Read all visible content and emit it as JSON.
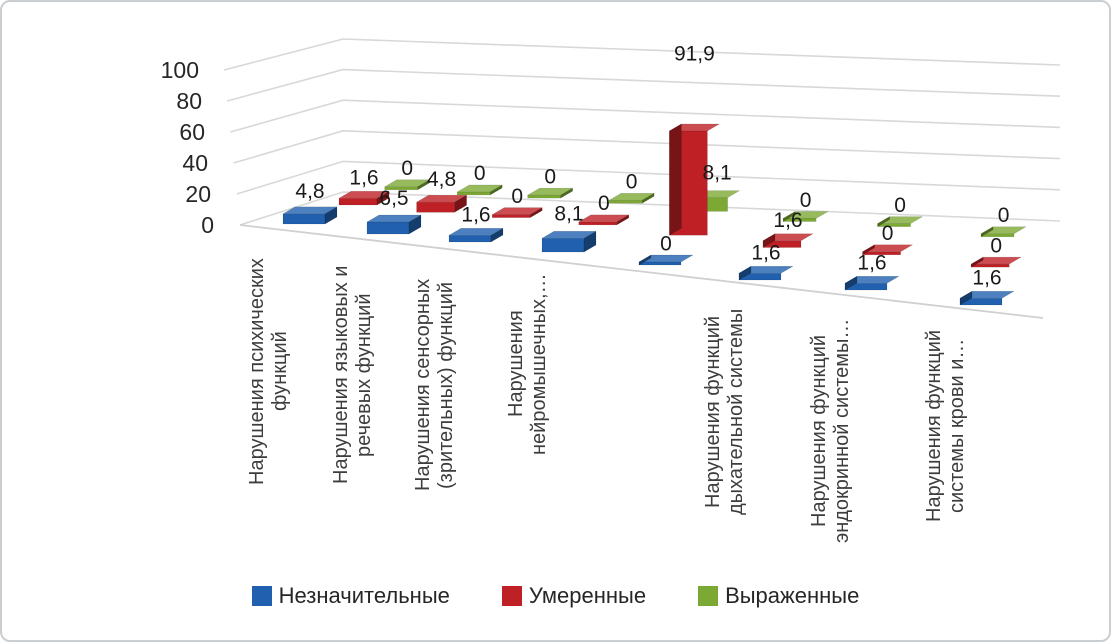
{
  "chart_data": {
    "type": "bar",
    "variant": "3d-column",
    "title": "",
    "categories": [
      [
        "Нарушения психических",
        "функций"
      ],
      [
        "Нарушения языковых и",
        "речевых функций"
      ],
      [
        "Нарушения сенсорных",
        "(зрительных) функций"
      ],
      [
        "Нарушения",
        "нейромышечных,…"
      ],
      [
        ""
      ],
      [
        "Нарушения функций",
        "дыхательной системы"
      ],
      [
        "Нарушения функций",
        "эндокринной системы…"
      ],
      [
        "Нарушения функций",
        "системы крови и…"
      ]
    ],
    "series": [
      {
        "name": "Незначительные",
        "color": "#2160AE",
        "values": [
          4.8,
          6.5,
          1.6,
          8.1,
          0,
          1.6,
          1.6,
          1.6
        ]
      },
      {
        "name": "Умеренные",
        "color": "#BE2026",
        "values": [
          1.6,
          4.8,
          0,
          0,
          91.9,
          1.6,
          0,
          0
        ]
      },
      {
        "name": "Выраженные",
        "color": "#7CA933",
        "values": [
          0,
          0,
          0,
          0,
          8.1,
          0,
          0,
          0
        ]
      }
    ],
    "y_axis": {
      "ticks": [
        0,
        20,
        40,
        60,
        80,
        100
      ],
      "min": 0,
      "max": 100
    },
    "decimal_separator": ",",
    "grid": true,
    "legend_position": "bottom",
    "colors": {
      "grid_line": "#d8d8d8",
      "floor_edge": "#d0d0d0",
      "tick_text": "#262626",
      "value_label_text": "#1a1a1a",
      "category_text": "#3d3d3d"
    }
  }
}
